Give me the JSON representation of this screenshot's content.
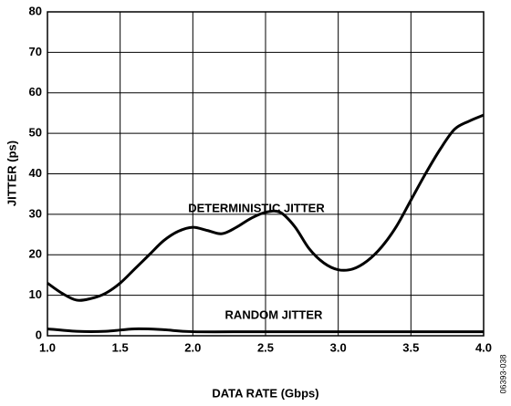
{
  "chart_data": {
    "type": "line",
    "xlabel": "DATA RATE (Gbps)",
    "ylabel": "JITTER (ps)",
    "annotations": [
      "DETERMINISTIC JITTER",
      "RANDOM JITTER",
      "06393-038"
    ],
    "xlim": [
      1,
      4
    ],
    "xticks": [
      {
        "value": 1,
        "label": "1.0"
      },
      1.5,
      {
        "value": 2,
        "label": "2.0"
      },
      2.5,
      {
        "value": 3,
        "label": "3.0"
      },
      3.5,
      {
        "value": 4,
        "label": "4.0"
      }
    ],
    "ylim": [
      0,
      80
    ],
    "yticks": [
      0,
      10,
      20,
      30,
      40,
      50,
      60,
      70,
      80
    ],
    "grid": true,
    "series": [
      {
        "name": "DETERMINISTIC JITTER",
        "color": "#000000",
        "x": [
          1.0,
          1.1,
          1.2,
          1.3,
          1.4,
          1.5,
          1.6,
          1.7,
          1.8,
          1.9,
          2.0,
          2.1,
          2.2,
          2.3,
          2.4,
          2.5,
          2.6,
          2.7,
          2.8,
          2.9,
          3.0,
          3.1,
          3.2,
          3.3,
          3.4,
          3.5,
          3.6,
          3.7,
          3.8,
          3.9,
          4.0
        ],
        "values": [
          13,
          10.5,
          8.8,
          9.2,
          10.5,
          13,
          16.5,
          20,
          23.5,
          25.8,
          26.8,
          26,
          25.2,
          26.8,
          29,
          30.5,
          30.5,
          27,
          21.5,
          18,
          16.3,
          16.5,
          18.5,
          22,
          27,
          33.5,
          40,
          46,
          51,
          53,
          54.5
        ]
      },
      {
        "name": "RANDOM JITTER",
        "color": "#000000",
        "x": [
          1.0,
          1.2,
          1.4,
          1.6,
          1.8,
          2.0,
          2.5,
          3.0,
          3.5,
          4.0
        ],
        "values": [
          1.7,
          1.1,
          1.1,
          1.7,
          1.5,
          1.0,
          1.0,
          1.0,
          1.0,
          1.0
        ]
      }
    ]
  }
}
